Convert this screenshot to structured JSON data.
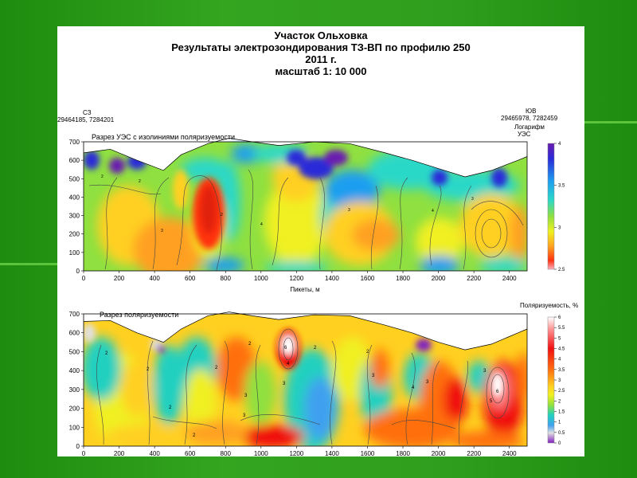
{
  "titles": {
    "line1": "Участок Ольховка",
    "line2": "Результаты электрозондирования ТЗ-ВП по профилю 250",
    "line3": "2011 г.",
    "line4": "масштаб 1: 10 000"
  },
  "profile": {
    "left_dir": "СЗ",
    "left_coords": "29464185, 7284201",
    "right_dir": "ЮВ",
    "right_coords": "29465978, 7282459"
  },
  "colors": {
    "background": "#2f9e1e",
    "slide": "#ffffff"
  },
  "chart_data": [
    {
      "type": "heatmap",
      "title": "Разрез УЭС с изолиниями поляризуемости",
      "xlabel": "Пикеты, м",
      "ylabel": "",
      "x_ticks": [
        0,
        200,
        400,
        600,
        800,
        1000,
        1200,
        1400,
        1600,
        1800,
        2000,
        2200,
        2400
      ],
      "y_ticks": [
        0,
        100,
        200,
        300,
        400,
        500,
        600,
        700
      ],
      "xlim": [
        0,
        2500
      ],
      "ylim": [
        0,
        700
      ],
      "colorbar_title_1": "Логарифм",
      "colorbar_title_2": "УЭС",
      "colorbar_ticks": [
        "4",
        "3.5",
        "3",
        "2.5"
      ],
      "colorbar_range": [
        2.5,
        4
      ],
      "surface": [
        [
          0,
          640
        ],
        [
          150,
          660
        ],
        [
          300,
          600
        ],
        [
          450,
          545
        ],
        [
          550,
          630
        ],
        [
          700,
          690
        ],
        [
          820,
          720
        ],
        [
          950,
          700
        ],
        [
          1100,
          680
        ],
        [
          1300,
          700
        ],
        [
          1500,
          690
        ],
        [
          1700,
          640
        ],
        [
          1850,
          600
        ],
        [
          2000,
          555
        ],
        [
          2150,
          510
        ],
        [
          2300,
          545
        ],
        [
          2450,
          600
        ],
        [
          2500,
          620
        ]
      ],
      "contour_labels": [
        "2",
        "2",
        "3",
        "2",
        "4",
        "3",
        "4",
        "3"
      ]
    },
    {
      "type": "heatmap",
      "title": "Разрез поляризуемости",
      "xlabel": "",
      "ylabel": "",
      "x_ticks": [
        0,
        200,
        400,
        600,
        800,
        1000,
        1200,
        1400,
        1600,
        1800,
        2000,
        2200,
        2400
      ],
      "y_ticks": [
        0,
        100,
        200,
        300,
        400,
        500,
        600,
        700
      ],
      "xlim": [
        0,
        2500
      ],
      "ylim": [
        0,
        700
      ],
      "colorbar_title": "Поляризуемость, %",
      "colorbar_ticks": [
        "6",
        "5.5",
        "5",
        "4.5",
        "4",
        "3.5",
        "3",
        "2.5",
        "2",
        "1.5",
        "1",
        "0.5",
        "0"
      ],
      "colorbar_range": [
        0,
        6
      ],
      "surface": [
        [
          0,
          660
        ],
        [
          150,
          665
        ],
        [
          300,
          600
        ],
        [
          450,
          550
        ],
        [
          550,
          620
        ],
        [
          700,
          690
        ],
        [
          820,
          710
        ],
        [
          950,
          690
        ],
        [
          1100,
          670
        ],
        [
          1300,
          695
        ],
        [
          1500,
          690
        ],
        [
          1700,
          640
        ],
        [
          1850,
          600
        ],
        [
          2000,
          550
        ],
        [
          2150,
          510
        ],
        [
          2300,
          540
        ],
        [
          2450,
          600
        ],
        [
          2500,
          620
        ]
      ],
      "contour_labels": [
        "2",
        "2",
        "2",
        "2",
        "3",
        "3",
        "2",
        "2",
        "6",
        "4",
        "3",
        "2",
        "2",
        "3",
        "4",
        "3",
        "6",
        "5",
        "3"
      ]
    }
  ]
}
